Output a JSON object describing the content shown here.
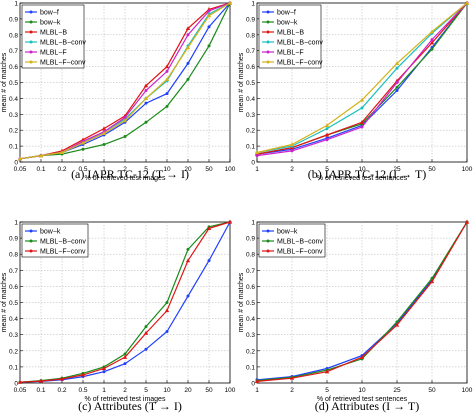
{
  "chart_data": [
    {
      "id": "a",
      "type": "line",
      "caption": "(a) IAPR TC-12 (T → I)",
      "xlabel": "% of retrieved test images",
      "ylabel": "mean # of matches",
      "x": [
        "0.05",
        "0.1",
        "0.2",
        "0.5",
        "1",
        "2",
        "5",
        "10",
        "20",
        "50",
        "100"
      ],
      "y_ticks": [
        "0",
        "0.1",
        "0.2",
        "0.3",
        "0.4",
        "0.5",
        "0.6",
        "0.7",
        "0.8",
        "0.9",
        "1"
      ],
      "ylim": [
        0,
        1
      ],
      "grid": true,
      "legend": "top-left",
      "series": [
        {
          "name": "bow−f",
          "color": "#1f3fff",
          "values": [
            0.02,
            0.04,
            0.06,
            0.11,
            0.17,
            0.25,
            0.37,
            0.43,
            0.62,
            0.85,
            1.0
          ]
        },
        {
          "name": "bow−k",
          "color": "#1a8a1a",
          "values": [
            0.02,
            0.04,
            0.05,
            0.08,
            0.11,
            0.16,
            0.25,
            0.35,
            0.52,
            0.73,
            1.0
          ]
        },
        {
          "name": "MLBL−B",
          "color": "#e01515",
          "values": [
            0.02,
            0.04,
            0.07,
            0.14,
            0.21,
            0.29,
            0.48,
            0.6,
            0.84,
            0.96,
            1.0
          ]
        },
        {
          "name": "MLBL−B−conv",
          "color": "#19c0c0",
          "values": [
            0.02,
            0.04,
            0.06,
            0.12,
            0.19,
            0.27,
            0.4,
            0.51,
            0.73,
            0.93,
            1.0
          ]
        },
        {
          "name": "MLBL−F",
          "color": "#cc22cc",
          "values": [
            0.02,
            0.04,
            0.06,
            0.13,
            0.19,
            0.28,
            0.45,
            0.57,
            0.8,
            0.95,
            1.0
          ]
        },
        {
          "name": "MLBL−F−conv",
          "color": "#d4b21a",
          "values": [
            0.02,
            0.04,
            0.06,
            0.12,
            0.18,
            0.26,
            0.4,
            0.52,
            0.72,
            0.92,
            1.0
          ]
        }
      ]
    },
    {
      "id": "b",
      "type": "line",
      "caption": "(b) IAPR TC-12 (I → T)",
      "xlabel": "% of retrieved test sentences",
      "ylabel": "mean # of matches",
      "x": [
        "1",
        "2",
        "5",
        "10",
        "25",
        "50",
        "100"
      ],
      "y_ticks": [
        "0",
        "0.1",
        "0.2",
        "0.3",
        "0.4",
        "0.5",
        "0.6",
        "0.7",
        "0.8",
        "0.9",
        "1"
      ],
      "ylim": [
        0,
        1
      ],
      "grid": true,
      "legend": "top-left",
      "series": [
        {
          "name": "bow−f",
          "color": "#1f3fff",
          "values": [
            0.05,
            0.08,
            0.15,
            0.23,
            0.45,
            0.72,
            1.0
          ]
        },
        {
          "name": "bow−k",
          "color": "#1a8a1a",
          "values": [
            0.05,
            0.09,
            0.17,
            0.24,
            0.47,
            0.71,
            1.0
          ]
        },
        {
          "name": "MLBL−B",
          "color": "#e01515",
          "values": [
            0.05,
            0.09,
            0.17,
            0.25,
            0.51,
            0.75,
            1.0
          ]
        },
        {
          "name": "MLBL−B−conv",
          "color": "#19c0c0",
          "values": [
            0.06,
            0.1,
            0.21,
            0.34,
            0.59,
            0.81,
            1.0
          ]
        },
        {
          "name": "MLBL−F",
          "color": "#cc22cc",
          "values": [
            0.04,
            0.07,
            0.14,
            0.22,
            0.5,
            0.77,
            1.0
          ]
        },
        {
          "name": "MLBL−F−conv",
          "color": "#d4b21a",
          "values": [
            0.06,
            0.11,
            0.23,
            0.39,
            0.62,
            0.82,
            1.0
          ]
        }
      ]
    },
    {
      "id": "c",
      "type": "line",
      "caption": "(c) Attributes (T → I)",
      "xlabel": "% of retrieved test images",
      "ylabel": "mean # of matches",
      "x": [
        "0.05",
        "0.1",
        "0.2",
        "0.5",
        "1",
        "2",
        "5",
        "10",
        "20",
        "50",
        "100"
      ],
      "y_ticks": [
        "0",
        "0.1",
        "0.2",
        "0.3",
        "0.4",
        "0.5",
        "0.6",
        "0.7",
        "0.8",
        "0.9",
        "1"
      ],
      "ylim": [
        0,
        1
      ],
      "grid": true,
      "legend": "top-left",
      "series": [
        {
          "name": "bow−k",
          "color": "#1f3fff",
          "values": [
            0.005,
            0.01,
            0.02,
            0.04,
            0.07,
            0.12,
            0.21,
            0.32,
            0.54,
            0.76,
            1.0
          ]
        },
        {
          "name": "MLBL−B−conv",
          "color": "#1a8a1a",
          "values": [
            0.005,
            0.015,
            0.03,
            0.06,
            0.1,
            0.18,
            0.35,
            0.5,
            0.83,
            0.97,
            1.0
          ]
        },
        {
          "name": "MLBL−F−conv",
          "color": "#e01515",
          "values": [
            0.005,
            0.012,
            0.025,
            0.05,
            0.09,
            0.16,
            0.31,
            0.45,
            0.76,
            0.96,
            1.0
          ]
        }
      ]
    },
    {
      "id": "d",
      "type": "line",
      "caption": "(d) Attributes (I → T)",
      "xlabel": "% of retrieved test sentences",
      "ylabel": "mean # of matches",
      "x": [
        "1",
        "2",
        "5",
        "10",
        "25",
        "50",
        "100"
      ],
      "y_ticks": [
        "0",
        "0.1",
        "0.2",
        "0.3",
        "0.4",
        "0.5",
        "0.6",
        "0.7",
        "0.8",
        "0.9",
        "1"
      ],
      "ylim": [
        0,
        1
      ],
      "grid": true,
      "legend": "top-left",
      "series": [
        {
          "name": "bow−k",
          "color": "#1f3fff",
          "values": [
            0.02,
            0.04,
            0.09,
            0.17,
            0.37,
            0.64,
            1.0
          ]
        },
        {
          "name": "MLBL−B−conv",
          "color": "#1a8a1a",
          "values": [
            0.015,
            0.035,
            0.08,
            0.15,
            0.38,
            0.65,
            1.0
          ]
        },
        {
          "name": "MLBL−F−conv",
          "color": "#e01515",
          "values": [
            0.01,
            0.03,
            0.07,
            0.16,
            0.36,
            0.63,
            1.0
          ]
        }
      ]
    }
  ]
}
